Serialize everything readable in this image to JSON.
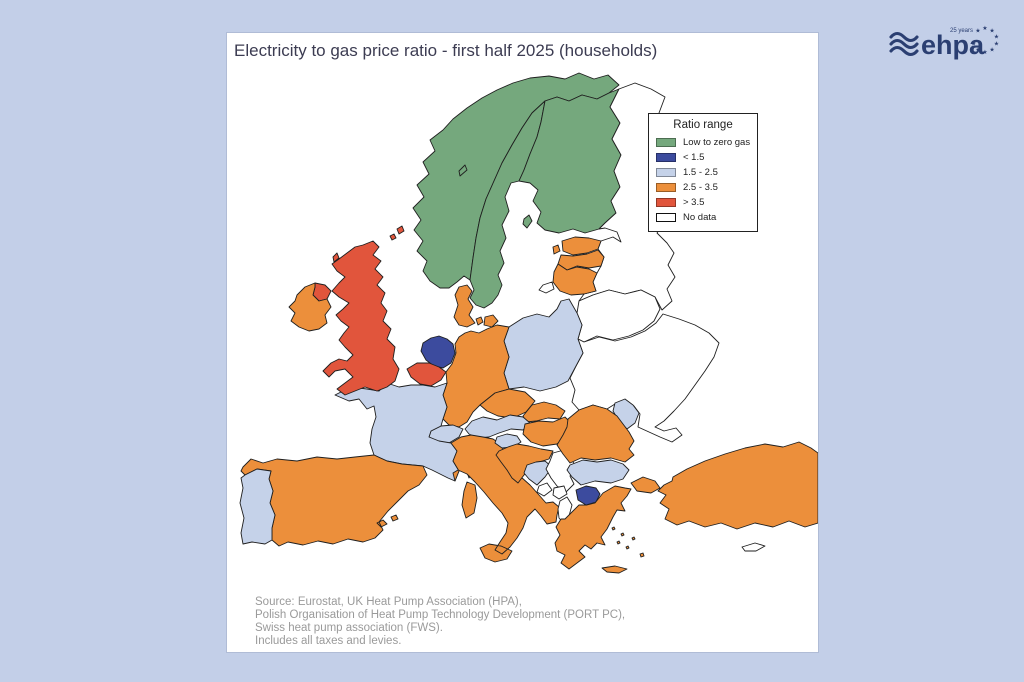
{
  "title": "Electricity to gas price ratio - first half 2025 (households)",
  "legend": {
    "title": "Ratio range",
    "items": [
      {
        "key": "low_zero",
        "label": "Low to zero gas",
        "color": "#75a87d"
      },
      {
        "key": "lt15",
        "label": "< 1.5",
        "color": "#3c4b9e"
      },
      {
        "key": "r1525",
        "label": "1.5 - 2.5",
        "color": "#c5d2e9"
      },
      {
        "key": "r2535",
        "label": "2.5 - 3.5",
        "color": "#ec8f3b"
      },
      {
        "key": "gt35",
        "label": "> 3.5",
        "color": "#e1553c"
      },
      {
        "key": "nodata",
        "label": "No data",
        "color": "#ffffff"
      }
    ]
  },
  "chart_data": {
    "type": "heatmap",
    "title": "Electricity to gas price ratio - first half 2025 (households)",
    "legend_title": "Ratio range",
    "categories": [
      "Low to zero gas",
      "< 1.5",
      "1.5 - 2.5",
      "2.5 - 3.5",
      "> 3.5",
      "No data"
    ],
    "series": [
      {
        "name": "Low to zero gas",
        "values": [
          "Norway",
          "Sweden",
          "Finland"
        ]
      },
      {
        "name": "< 1.5",
        "values": [
          "Netherlands",
          "North Macedonia"
        ]
      },
      {
        "name": "1.5 - 2.5",
        "values": [
          "France",
          "Portugal",
          "Poland",
          "Austria",
          "Switzerland",
          "Slovenia",
          "Bosnia and Herzegovina",
          "Bulgaria",
          "Moldova"
        ]
      },
      {
        "name": "2.5 - 3.5",
        "values": [
          "Ireland",
          "Spain",
          "Italy",
          "Germany",
          "Denmark",
          "Czechia",
          "Slovakia",
          "Hungary",
          "Croatia",
          "Romania",
          "Greece",
          "Turkey",
          "Estonia",
          "Latvia",
          "Lithuania"
        ]
      },
      {
        "name": "> 3.5",
        "values": [
          "United Kingdom",
          "Belgium"
        ]
      },
      {
        "name": "No data",
        "values": [
          "Ukraine",
          "Belarus",
          "Russia",
          "Serbia",
          "Montenegro",
          "Kosovo",
          "Albania",
          "Cyprus"
        ]
      }
    ]
  },
  "map": {
    "country_ratios": {
      "norway": "low_zero",
      "sweden": "low_zero",
      "finland": "low_zero",
      "netherlands": "lt15",
      "north_macedonia": "lt15",
      "france": "r1525",
      "portugal": "r1525",
      "poland": "r1525",
      "austria": "r1525",
      "switzerland": "r1525",
      "slovenia": "r1525",
      "bosnia_herzegovina": "r1525",
      "bulgaria": "r1525",
      "moldova": "r1525",
      "ireland": "r2535",
      "spain": "r2535",
      "italy": "r2535",
      "germany": "r2535",
      "denmark": "r2535",
      "czechia": "r2535",
      "slovakia": "r2535",
      "hungary": "r2535",
      "croatia": "r2535",
      "romania": "r2535",
      "greece": "r2535",
      "turkey": "r2535",
      "estonia": "r2535",
      "latvia": "r2535",
      "lithuania": "r2535",
      "united_kingdom": "gt35",
      "belgium": "gt35",
      "ukraine": "nodata",
      "belarus": "nodata",
      "russia": "nodata",
      "serbia": "nodata",
      "montenegro": "nodata",
      "kosovo": "nodata",
      "albania": "nodata",
      "cyprus": "nodata"
    }
  },
  "source": {
    "lines": [
      "Source: Eurostat, UK Heat Pump Association (HPA),",
      "Polish Organisation of Heat Pump Technology Development (PORT PC),",
      "Swiss heat pump association (FWS).",
      "Includes all taxes and levies."
    ]
  },
  "logo": {
    "wordmark": "ehpa",
    "anniversary": "25 years",
    "star": "★"
  }
}
